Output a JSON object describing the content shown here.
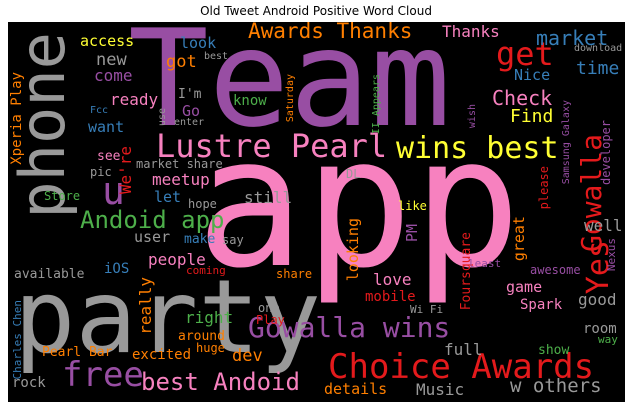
{
  "title": "Old Tweet Android Positive Word Cloud",
  "words": [
    {
      "text": "Team",
      "color": "#984ea3"
    },
    {
      "text": "app",
      "color": "#f781bf"
    },
    {
      "text": "phone",
      "color": "#999999"
    },
    {
      "text": "party",
      "color": "#999999"
    },
    {
      "text": "Lustre Pearl",
      "color": "#f781bf"
    },
    {
      "text": "wins best",
      "color": "#ffff33"
    },
    {
      "text": "Choice Awards",
      "color": "#e41a1c"
    },
    {
      "text": "Gowalla wins",
      "color": "#984ea3"
    },
    {
      "text": "best Andoid",
      "color": "#f781bf"
    },
    {
      "text": "free",
      "color": "#984ea3"
    },
    {
      "text": "Awards Thanks",
      "color": "#ff7f00"
    },
    {
      "text": "get",
      "color": "#e41a1c"
    },
    {
      "text": "Andoid app",
      "color": "#4daf4a"
    },
    {
      "text": "u",
      "color": "#984ea3"
    },
    {
      "text": "Yes",
      "color": "#e41a1c"
    },
    {
      "text": "Gowalla",
      "color": "#e41a1c"
    },
    {
      "text": "Check",
      "color": "#f781bf"
    },
    {
      "text": "Find",
      "color": "#ffff33"
    },
    {
      "text": "market",
      "color": "#377eb8"
    },
    {
      "text": "time",
      "color": "#377eb8"
    },
    {
      "text": "Nice",
      "color": "#377eb8"
    },
    {
      "text": "Thanks",
      "color": "#f781bf"
    },
    {
      "text": "access",
      "color": "#ffff33"
    },
    {
      "text": "look",
      "color": "#377eb8"
    },
    {
      "text": "new",
      "color": "#999999"
    },
    {
      "text": "come",
      "color": "#984ea3"
    },
    {
      "text": "got",
      "color": "#ff7f00"
    },
    {
      "text": "ready",
      "color": "#f781bf"
    },
    {
      "text": "I'm",
      "color": "#999999"
    },
    {
      "text": "Go",
      "color": "#984ea3"
    },
    {
      "text": "know",
      "color": "#4daf4a"
    },
    {
      "text": "want",
      "color": "#377eb8"
    },
    {
      "text": "see",
      "color": "#f781bf"
    },
    {
      "text": "We're",
      "color": "#e41a1c"
    },
    {
      "text": "meetup",
      "color": "#f781bf"
    },
    {
      "text": "let",
      "color": "#377eb8"
    },
    {
      "text": "still",
      "color": "#999999"
    },
    {
      "text": "user",
      "color": "#999999"
    },
    {
      "text": "make",
      "color": "#377eb8"
    },
    {
      "text": "iOS",
      "color": "#377eb8"
    },
    {
      "text": "people",
      "color": "#f781bf"
    },
    {
      "text": "available",
      "color": "#999999"
    },
    {
      "text": "really",
      "color": "#ff7f00"
    },
    {
      "text": "right",
      "color": "#4daf4a"
    },
    {
      "text": "excited",
      "color": "#ff7f00"
    },
    {
      "text": "dev",
      "color": "#ff7f00"
    },
    {
      "text": "PM",
      "color": "#984ea3"
    },
    {
      "text": "Foursquare",
      "color": "#e41a1c"
    },
    {
      "text": "looking",
      "color": "#ff7f00"
    },
    {
      "text": "love",
      "color": "#f781bf"
    },
    {
      "text": "mobile",
      "color": "#e41a1c"
    },
    {
      "text": "Spark",
      "color": "#f781bf"
    },
    {
      "text": "game",
      "color": "#f781bf"
    },
    {
      "text": "good",
      "color": "#999999"
    },
    {
      "text": "room",
      "color": "#999999"
    },
    {
      "text": "full",
      "color": "#999999"
    },
    {
      "text": "show",
      "color": "#4daf4a"
    },
    {
      "text": "details",
      "color": "#ff7f00"
    },
    {
      "text": "Music",
      "color": "#999999"
    },
    {
      "text": "w others",
      "color": "#999999"
    },
    {
      "text": "Xperia Play",
      "color": "#ff7f00"
    },
    {
      "text": "Pearl Bar",
      "color": "#ff7f00"
    },
    {
      "text": "rock",
      "color": "#999999"
    },
    {
      "text": "Charles Chen",
      "color": "#377eb8"
    },
    {
      "text": "huge",
      "color": "#ff7f00"
    },
    {
      "text": "around",
      "color": "#ff7f00"
    },
    {
      "text": "Play",
      "color": "#e41a1c"
    },
    {
      "text": "one",
      "color": "#999999"
    },
    {
      "text": "share",
      "color": "#ff7f00"
    },
    {
      "text": "coming",
      "color": "#e41a1c"
    },
    {
      "text": "Wi Fi",
      "color": "#999999"
    },
    {
      "text": "say",
      "color": "#999999"
    },
    {
      "text": "hope",
      "color": "#999999"
    },
    {
      "text": "Store",
      "color": "#4daf4a"
    },
    {
      "text": "pic",
      "color": "#999999"
    },
    {
      "text": "market share",
      "color": "#999999"
    },
    {
      "text": "DL",
      "color": "#999999"
    },
    {
      "text": "like",
      "color": "#ffff33"
    },
    {
      "text": "great",
      "color": "#ff7f00"
    },
    {
      "text": "please",
      "color": "#e41a1c"
    },
    {
      "text": "least",
      "color": "#984ea3"
    },
    {
      "text": "awesome",
      "color": "#984ea3"
    },
    {
      "text": "Nexus",
      "color": "#984ea3"
    },
    {
      "text": "way",
      "color": "#4daf4a"
    },
    {
      "text": "well",
      "color": "#999999"
    },
    {
      "text": "developer",
      "color": "#984ea3"
    },
    {
      "text": "Samsung Galaxy",
      "color": "#984ea3"
    },
    {
      "text": "wish",
      "color": "#984ea3"
    },
    {
      "text": "II Appears",
      "color": "#4daf4a"
    },
    {
      "text": "Saturday",
      "color": "#ff7f00"
    },
    {
      "text": "enter",
      "color": "#999999"
    },
    {
      "text": "use",
      "color": "#999999"
    },
    {
      "text": "Fcc",
      "color": "#377eb8"
    },
    {
      "text": "download",
      "color": "#999999"
    },
    {
      "text": "best",
      "color": "#999999"
    }
  ]
}
